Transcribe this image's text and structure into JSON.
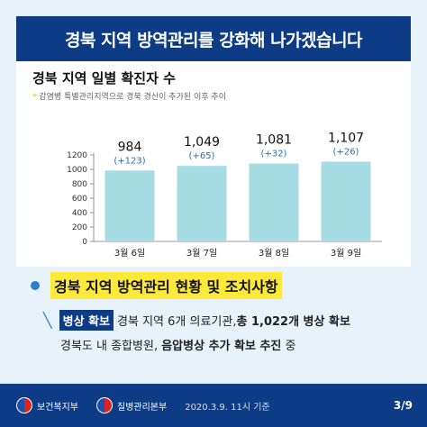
{
  "header": {
    "title": "경북 지역 방역관리를 강화해 나가겠습니다"
  },
  "chart": {
    "title": "경북 지역 일별 확진자 수",
    "note": "감염병 특별관리지역으로 경북 경산이 추가된 이후 추이"
  },
  "chart_data": {
    "type": "bar",
    "categories": [
      "3월 6일",
      "3월 7일",
      "3월 8일",
      "3월 9일"
    ],
    "values": [
      984,
      1049,
      1081,
      1107
    ],
    "value_labels": [
      "984",
      "1,049",
      "1,081",
      "1,107"
    ],
    "change_labels": [
      "(+123)",
      "(+65)",
      "(+32)",
      "(+26)"
    ],
    "yticks": [
      0,
      200,
      400,
      600,
      800,
      1000,
      1200
    ],
    "ylim": [
      0,
      1200
    ],
    "bar_color": "#a6dde5",
    "grid": false
  },
  "section": {
    "label": "경북 지역 방역관리 현황 및 조치사항"
  },
  "items": {
    "line1": {
      "tag": "병상 확보",
      "text": "경북 지역 6개 의료기관, ",
      "bold": "총 1,022개 병상 확보"
    },
    "line2": {
      "text": "경북도 내 종합병원, ",
      "bold": "음압병상 추가 확보 추진",
      "suffix": " 중"
    }
  },
  "footer": {
    "org1": "보건복지부",
    "org2": "질병관리본부",
    "date": "2020.3.9. 11시 기준",
    "page": "3/9"
  },
  "colors": {
    "navy": "#0d3b86",
    "highlight": "#fde93a",
    "accent": "#2a7fc9"
  }
}
